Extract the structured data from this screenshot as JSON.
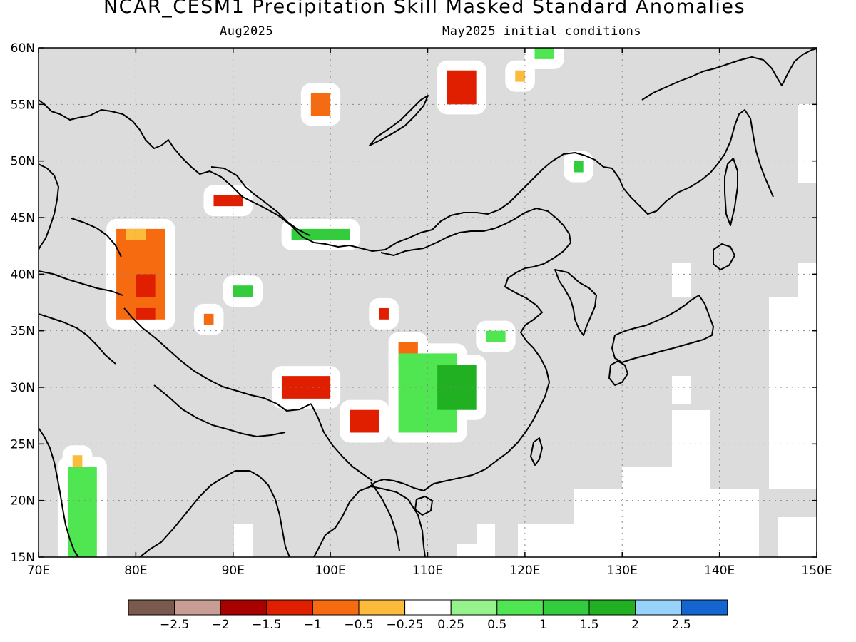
{
  "title": "NCAR_CESM1 Precipitation Skill Masked Standard Anomalies",
  "subtitle_left": "Aug2025",
  "subtitle_right": "May2025 initial conditions",
  "map": {
    "lon_min": 70,
    "lon_max": 150,
    "lat_min": 15,
    "lat_max": 60,
    "lon_ticks": [
      "70E",
      "80E",
      "90E",
      "100E",
      "110E",
      "120E",
      "130E",
      "140E",
      "150E"
    ],
    "lat_ticks": [
      "15N",
      "20N",
      "25N",
      "30N",
      "35N",
      "40N",
      "45N",
      "50N",
      "55N",
      "60N"
    ],
    "land_mask_color": "#dcdcdc",
    "grid": true
  },
  "colorbar": {
    "colors": [
      "#7a5a4e",
      "#c89e94",
      "#a90000",
      "#e01e00",
      "#f66a10",
      "#fdbb3c",
      "#ffffff",
      "#96f38c",
      "#50e651",
      "#32cc3c",
      "#20b022",
      "#96d2fa",
      "#1464d2"
    ],
    "labels": [
      "−2.5",
      "−2",
      "−1.5",
      "−1",
      "−0.5",
      "−0.25",
      "0.25",
      "0.5",
      "1",
      "1.5",
      "2",
      "2.5"
    ]
  },
  "chart_data": {
    "type": "heatmap",
    "title": "NCAR_CESM1 Precipitation Skill Masked Standard Anomalies",
    "subtitle": [
      "Aug2025",
      "May2025 initial conditions"
    ],
    "variable": "precipitation standard anomaly (skill masked)",
    "xrange": [
      70,
      150
    ],
    "yrange": [
      15,
      60
    ],
    "levels": [
      -2.5,
      -2,
      -1.5,
      -1,
      -0.5,
      -0.25,
      0.25,
      0.5,
      1,
      1.5,
      2,
      2.5
    ],
    "regions": [
      {
        "lon": [
          73,
          76
        ],
        "lat": [
          15,
          23
        ],
        "value": 0.7
      },
      {
        "lon": [
          73.5,
          74.5
        ],
        "lat": [
          23,
          24
        ],
        "value": -0.5
      },
      {
        "lon": [
          78,
          83
        ],
        "lat": [
          36,
          44
        ],
        "value": -1.0
      },
      {
        "lon": [
          79,
          81
        ],
        "lat": [
          43,
          44
        ],
        "value": -0.5
      },
      {
        "lon": [
          80,
          82
        ],
        "lat": [
          38,
          40
        ],
        "value": -1.5
      },
      {
        "lon": [
          80,
          82
        ],
        "lat": [
          36,
          37
        ],
        "value": -1.5
      },
      {
        "lon": [
          87,
          88
        ],
        "lat": [
          35.5,
          36.5
        ],
        "value": -1.0
      },
      {
        "lon": [
          88,
          91
        ],
        "lat": [
          46,
          47
        ],
        "value": -1.5
      },
      {
        "lon": [
          90,
          92
        ],
        "lat": [
          38,
          39
        ],
        "value": 1.0
      },
      {
        "lon": [
          95,
          100
        ],
        "lat": [
          29,
          31
        ],
        "value": -1.5
      },
      {
        "lon": [
          96,
          102
        ],
        "lat": [
          43,
          44
        ],
        "value": 1.0
      },
      {
        "lon": [
          98,
          100
        ],
        "lat": [
          54,
          56
        ],
        "value": -1.0
      },
      {
        "lon": [
          102,
          105
        ],
        "lat": [
          26,
          28
        ],
        "value": -1.5
      },
      {
        "lon": [
          105,
          106
        ],
        "lat": [
          36,
          37
        ],
        "value": -1.5
      },
      {
        "lon": [
          107,
          109
        ],
        "lat": [
          32,
          34
        ],
        "value": -1.0
      },
      {
        "lon": [
          107,
          113
        ],
        "lat": [
          26,
          33
        ],
        "value": 0.7
      },
      {
        "lon": [
          111,
          115
        ],
        "lat": [
          28,
          32
        ],
        "value": 1.5
      },
      {
        "lon": [
          112,
          115
        ],
        "lat": [
          55,
          58
        ],
        "value": -1.5
      },
      {
        "lon": [
          116,
          118
        ],
        "lat": [
          34,
          35
        ],
        "value": 0.5
      },
      {
        "lon": [
          119,
          120
        ],
        "lat": [
          57,
          58
        ],
        "value": -0.5
      },
      {
        "lon": [
          121,
          123
        ],
        "lat": [
          59,
          60
        ],
        "value": 0.5
      },
      {
        "lon": [
          125,
          126
        ],
        "lat": [
          49,
          50
        ],
        "value": 1.0
      }
    ]
  }
}
